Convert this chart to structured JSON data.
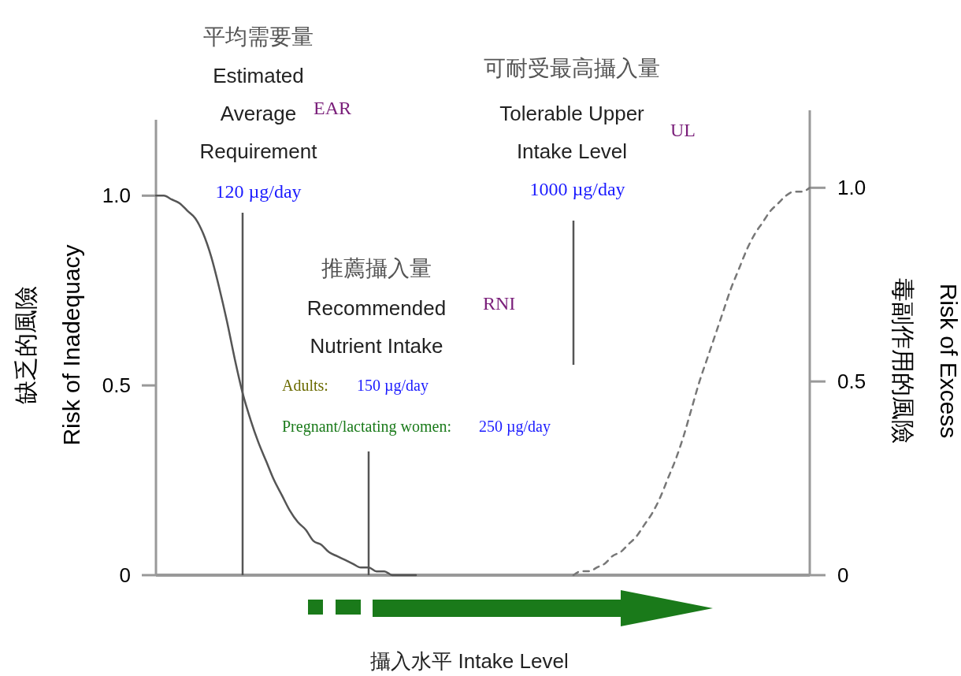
{
  "chart_data": {
    "type": "line",
    "xlabel": "攝入水平  Intake Level",
    "ylabel": "缺乏的風險\nRisk of Inadequacy",
    "y2label": "毒副作用的風險\nRisk of Excess",
    "categories": [
      null,
      null,
      null,
      null,
      null,
      null,
      null,
      null,
      null,
      null,
      null,
      null,
      null,
      null,
      null,
      null,
      null,
      null,
      null,
      null,
      null,
      null,
      null,
      null,
      null,
      null,
      null,
      null,
      null,
      null,
      null,
      null,
      null,
      null,
      null,
      null,
      null,
      null,
      null,
      null,
      null,
      null,
      null,
      null,
      null,
      null,
      null,
      null,
      null,
      null,
      null,
      null,
      null,
      null,
      null,
      null,
      null,
      null,
      null,
      null,
      null,
      null,
      null,
      null,
      null,
      null,
      null,
      null,
      null,
      null,
      null,
      null,
      null,
      null,
      null,
      null,
      null,
      null,
      null,
      null,
      null,
      null,
      null,
      null
    ],
    "ylim": [
      0,
      1.2
    ],
    "yticks": [
      0,
      0.5,
      {
        "value": 1,
        "label": "1.0"
      }
    ],
    "y2lim": [
      0,
      1.2
    ],
    "y2ticks": [
      0,
      0.5,
      {
        "value": 1,
        "label": "1.0"
      }
    ],
    "tick_labels": "y",
    "grid": false,
    "series": [
      {
        "color": "#555555",
        "line_style": "solid",
        "values": [
          1,
          1,
          0.99,
          0.98,
          0.96,
          0.94,
          0.9,
          0.84,
          0.76,
          0.67,
          0.57,
          0.48,
          0.41,
          0.35,
          0.3,
          0.25,
          0.21,
          0.17,
          0.14,
          0.12,
          0.09,
          0.08,
          0.06,
          0.05,
          0.04,
          0.03,
          0.02,
          0.02,
          0.01,
          0.01,
          0,
          0,
          0,
          0,
          null,
          null,
          null,
          null,
          null,
          null,
          null,
          null,
          null,
          null,
          null,
          null,
          null,
          null,
          null,
          null,
          null,
          null,
          null,
          null,
          null,
          null,
          null,
          null,
          null,
          null,
          null,
          null,
          null,
          null,
          null,
          null,
          null,
          null,
          null,
          null,
          null,
          null,
          null,
          null,
          null,
          null,
          null,
          null,
          null,
          null,
          null,
          null,
          null,
          null
        ]
      },
      {
        "color": "#777777",
        "line_style": "dashed",
        "axis": "y2",
        "values": [
          null,
          null,
          null,
          null,
          null,
          null,
          null,
          null,
          null,
          null,
          null,
          null,
          null,
          null,
          null,
          null,
          null,
          null,
          null,
          null,
          null,
          null,
          null,
          null,
          null,
          null,
          null,
          null,
          null,
          null,
          null,
          null,
          null,
          null,
          null,
          null,
          null,
          null,
          null,
          null,
          null,
          null,
          null,
          null,
          null,
          null,
          null,
          null,
          null,
          null,
          null,
          null,
          null,
          0,
          0.01,
          0.01,
          0.02,
          0.03,
          0.05,
          0.06,
          0.08,
          0.1,
          0.13,
          0.16,
          0.2,
          0.25,
          0.3,
          0.36,
          0.43,
          0.5,
          0.56,
          0.62,
          0.68,
          0.74,
          0.79,
          0.84,
          0.88,
          0.91,
          0.94,
          0.96,
          0.98,
          0.99,
          0.99,
          1
        ]
      }
    ],
    "annotations": [
      "平均需要量",
      "Estimated",
      "Average",
      "Requirement",
      "120 µg/day",
      "可耐受最高攝入量",
      "Tolerable Upper",
      "Intake Level",
      "1000 µg/day",
      "推薦攝入量",
      "Recommended",
      "Nutrient Intake",
      "Adults:",
      "150 µg/day",
      "Pregnant/lactating women:",
      "250 µg/day",
      "EAR",
      "RNI",
      "UL"
    ]
  }
}
